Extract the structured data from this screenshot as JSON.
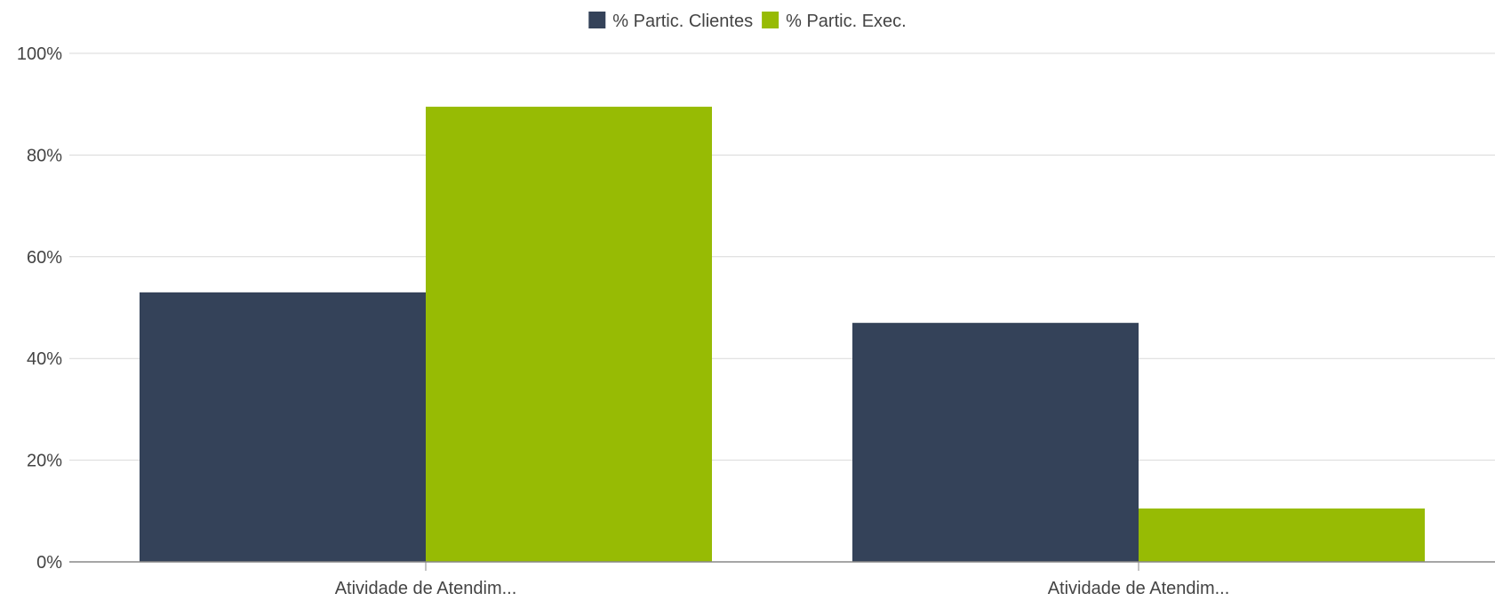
{
  "chart_data": {
    "type": "bar",
    "categories": [
      "Atividade de Atendim...",
      "Atividade de Atendim..."
    ],
    "series": [
      {
        "name": "% Partic. Clientes",
        "values": [
          53,
          47
        ],
        "color": "#344259"
      },
      {
        "name": "% Partic. Exec.",
        "values": [
          89.5,
          10.5
        ],
        "color": "#97BB04"
      }
    ],
    "ylim": [
      0,
      100
    ],
    "yticks": [
      0,
      20,
      40,
      60,
      80,
      100
    ],
    "ytick_labels": [
      "0%",
      "20%",
      "40%",
      "60%",
      "80%",
      "100%"
    ],
    "grid": true,
    "legend_position": "top-center",
    "title": "",
    "xlabel": "",
    "ylabel": ""
  }
}
